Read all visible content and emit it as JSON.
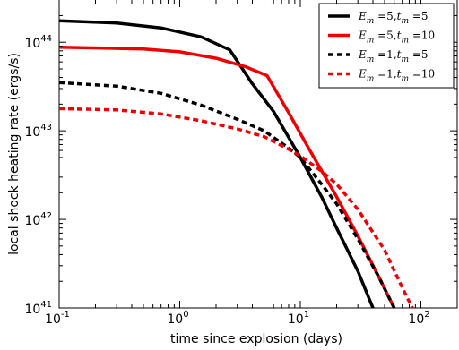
{
  "chart_data": {
    "type": "line",
    "title": "",
    "xlabel": "time since explosion (days)",
    "ylabel": "local shock heating rate (ergs/s)",
    "xscale": "log",
    "yscale": "log",
    "xlim": [
      0.1,
      200
    ],
    "ylim": [
      1e+41,
      3e+44
    ],
    "x_ticks": [
      {
        "value": 0.1,
        "base": "10",
        "exp": "-1"
      },
      {
        "value": 1,
        "base": "10",
        "exp": "0"
      },
      {
        "value": 10,
        "base": "10",
        "exp": "1"
      },
      {
        "value": 100,
        "base": "10",
        "exp": "2"
      }
    ],
    "y_ticks": [
      {
        "value": 1e+41,
        "base": "10",
        "exp": "41"
      },
      {
        "value": 1e+42,
        "base": "10",
        "exp": "42"
      },
      {
        "value": 1e+43,
        "base": "10",
        "exp": "43"
      },
      {
        "value": 1e+44,
        "base": "10",
        "exp": "44"
      }
    ],
    "grid": false,
    "legend_position": "top-right",
    "series": [
      {
        "name": "E_m = 5, t_m = 5",
        "legend": {
          "e": "5",
          "t": "5"
        },
        "color": "#000000",
        "style": "solid",
        "points": [
          [
            0.1,
            1.75e+44
          ],
          [
            0.3,
            1.65e+44
          ],
          [
            0.7,
            1.45e+44
          ],
          [
            1.5,
            1.15e+44
          ],
          [
            2.6,
            8.2e+43
          ],
          [
            4.0,
            3.4e+43
          ],
          [
            6.0,
            1.65e+43
          ],
          [
            10.0,
            5e+42
          ],
          [
            15.0,
            1.8e+42
          ],
          [
            20.0,
            8e+41
          ],
          [
            30.0,
            2.6e+41
          ],
          [
            40.0,
            1e+41
          ]
        ]
      },
      {
        "name": "E_m = 5, t_m = 10",
        "legend": {
          "e": "5",
          "t": "10"
        },
        "color": "#ee0000",
        "style": "solid",
        "points": [
          [
            0.1,
            8.8e+43
          ],
          [
            0.5,
            8.4e+43
          ],
          [
            1.0,
            7.8e+43
          ],
          [
            2.0,
            6.6e+43
          ],
          [
            3.5,
            5.3e+43
          ],
          [
            5.3,
            4.2e+43
          ],
          [
            8.0,
            1.6e+43
          ],
          [
            12.0,
            6e+42
          ],
          [
            20.0,
            1.8e+42
          ],
          [
            30.0,
            6.5e+41
          ],
          [
            45.0,
            2.2e+41
          ],
          [
            60.0,
            1e+41
          ]
        ]
      },
      {
        "name": "E_m = 1, t_m = 5",
        "legend": {
          "e": "1",
          "t": "5"
        },
        "color": "#000000",
        "style": "dashed",
        "points": [
          [
            0.1,
            3.5e+43
          ],
          [
            0.3,
            3.2e+43
          ],
          [
            0.7,
            2.65e+43
          ],
          [
            1.5,
            1.95e+43
          ],
          [
            3.0,
            1.35e+43
          ],
          [
            5.0,
            1e+43
          ],
          [
            8.0,
            6.4e+42
          ],
          [
            10.0,
            5e+42
          ],
          [
            15.0,
            2.5e+42
          ],
          [
            20.0,
            1.5e+42
          ],
          [
            30.0,
            6e+41
          ],
          [
            45.0,
            2.2e+41
          ],
          [
            60.0,
            1e+41
          ]
        ]
      },
      {
        "name": "E_m = 1, t_m = 10",
        "legend": {
          "e": "1",
          "t": "10"
        },
        "color": "#ee0000",
        "style": "dashed",
        "points": [
          [
            0.1,
            1.78e+43
          ],
          [
            0.3,
            1.72e+43
          ],
          [
            0.7,
            1.55e+43
          ],
          [
            1.5,
            1.3e+43
          ],
          [
            3.0,
            1.05e+43
          ],
          [
            5.0,
            8.6e+42
          ],
          [
            8.0,
            6.2e+42
          ],
          [
            10.0,
            5.2e+42
          ],
          [
            15.0,
            3.5e+42
          ],
          [
            20.0,
            2.5e+42
          ],
          [
            30.0,
            1.3e+42
          ],
          [
            50.0,
            4.5e+41
          ],
          [
            70.0,
            1.7e+41
          ],
          [
            85.0,
            1e+41
          ]
        ]
      }
    ]
  }
}
